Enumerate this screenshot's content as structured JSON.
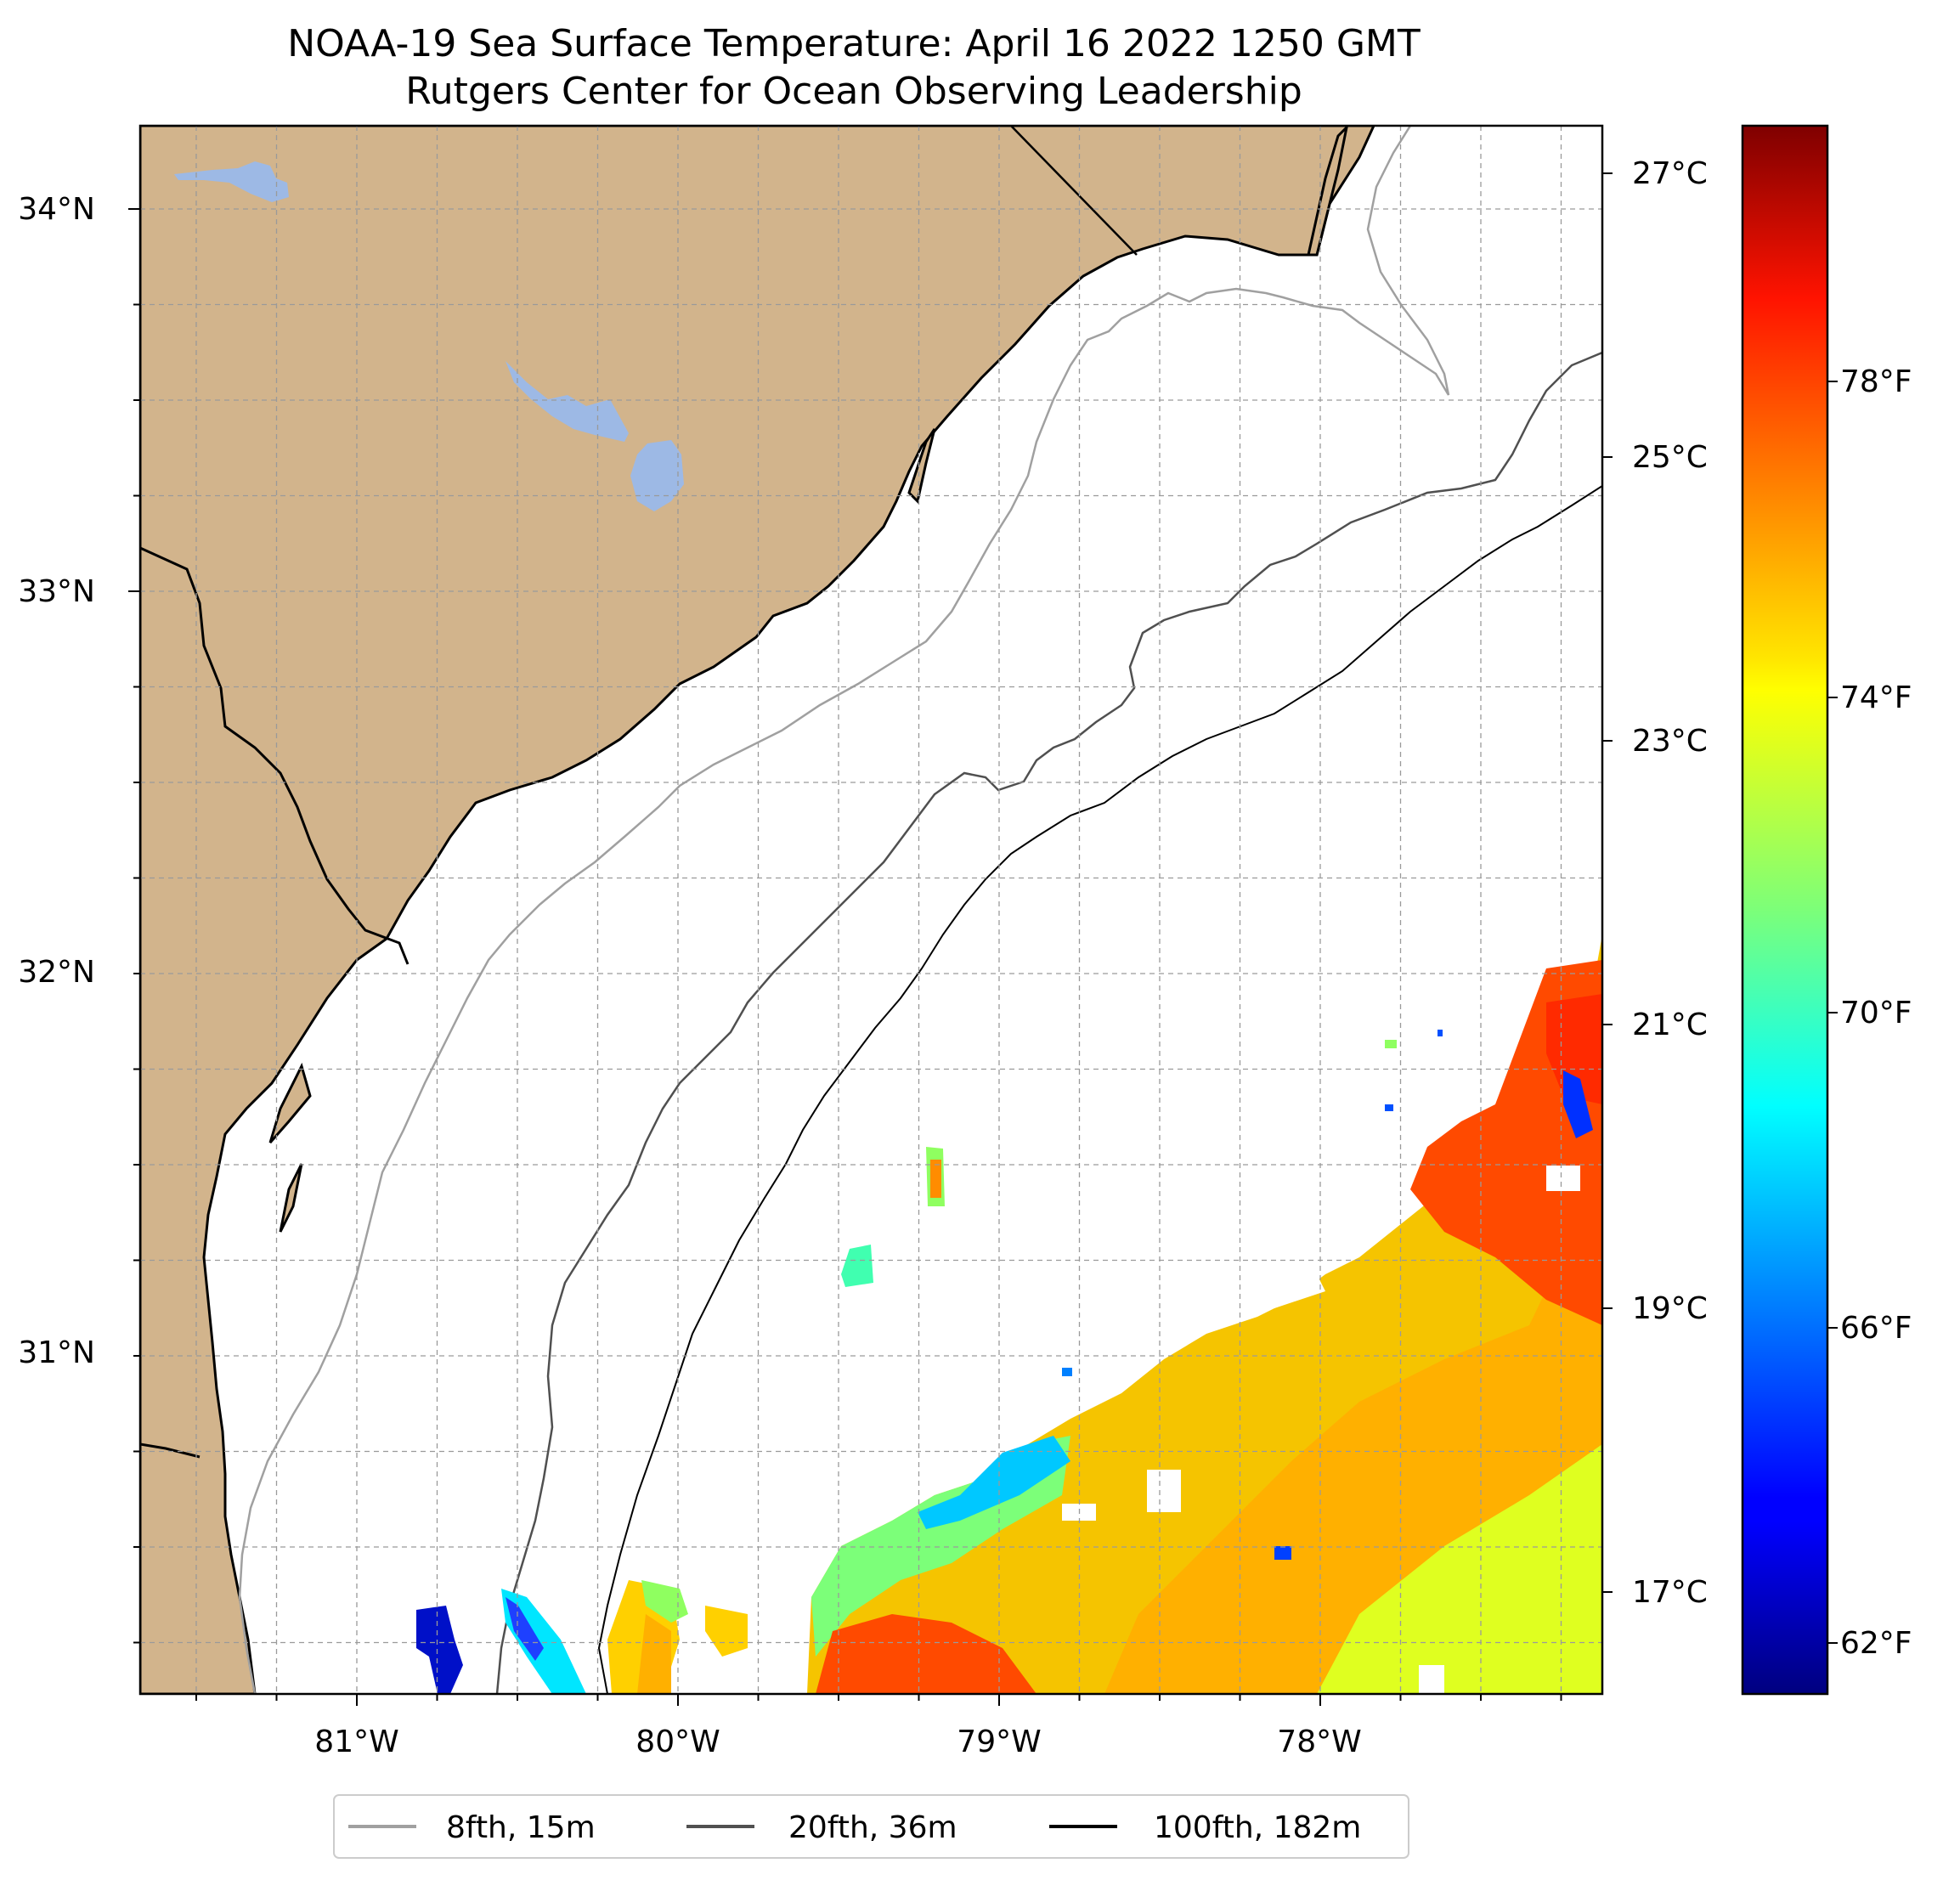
{
  "title": "NOAA-19 Sea Surface Temperature: April 16 2022 1250 GMT",
  "subtitle": "Rutgers Center for Ocean Observing Leadership",
  "map": {
    "lat_labels": [
      "34°N",
      "33°N",
      "32°N",
      "31°N"
    ],
    "lon_labels": [
      "81°W",
      "80°W",
      "79°W",
      "78°W"
    ],
    "land_color": "#D2B48C",
    "water_color": "#9DB9E5"
  },
  "colorbar": {
    "colormap": "jet",
    "celsius_labels": [
      "27°C",
      "25°C",
      "23°C",
      "21°C",
      "19°C",
      "17°C"
    ],
    "fahrenheit_labels": [
      "78°F",
      "74°F",
      "70°F",
      "66°F",
      "62°F"
    ]
  },
  "legend": {
    "items": [
      {
        "label": "8fth, 15m",
        "color": "#A0A0A0"
      },
      {
        "label": "20fth, 36m",
        "color": "#505050"
      },
      {
        "label": "100fth, 182m",
        "color": "#000000"
      }
    ]
  }
}
